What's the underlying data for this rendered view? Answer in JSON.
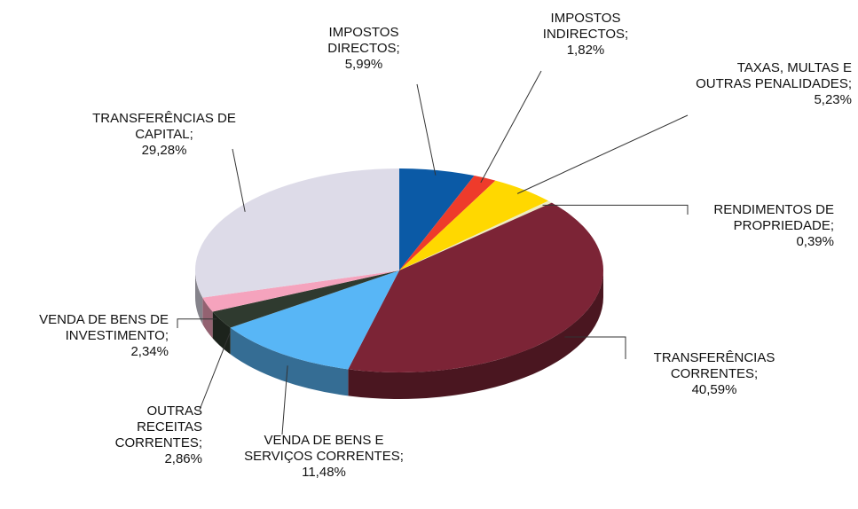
{
  "chart_data": {
    "type": "pie3d",
    "categories": [
      "IMPOSTOS DIRECTOS;",
      "IMPOSTOS INDIRECTOS;",
      "TAXAS, MULTAS E OUTRAS PENALIDADES;",
      "RENDIMENTOS DE PROPRIEDADE;",
      "TRANSFERÊNCIAS CORRENTES;",
      "VENDA DE BENS E SERVIÇOS CORRENTES;",
      "OUTRAS RECEITAS CORRENTES;",
      "VENDA DE BENS DE INVESTIMENTO;",
      "TRANSFERÊNCIAS DE CAPITAL;"
    ],
    "values": [
      5.99,
      1.82,
      5.23,
      0.39,
      40.59,
      11.48,
      2.86,
      2.34,
      29.28
    ],
    "value_labels": [
      "5,99%",
      "1,82%",
      "5,23%",
      "0,39%",
      "40,59%",
      "11,48%",
      "2,86%",
      "2,34%",
      "29,28%"
    ],
    "colors": [
      "#0b5aa6",
      "#ee3b2b",
      "#ffd800",
      "#ecebc4",
      "#7c2436",
      "#58b6f6",
      "#2f3a2f",
      "#f5a3bd",
      "#dddbe8"
    ]
  }
}
